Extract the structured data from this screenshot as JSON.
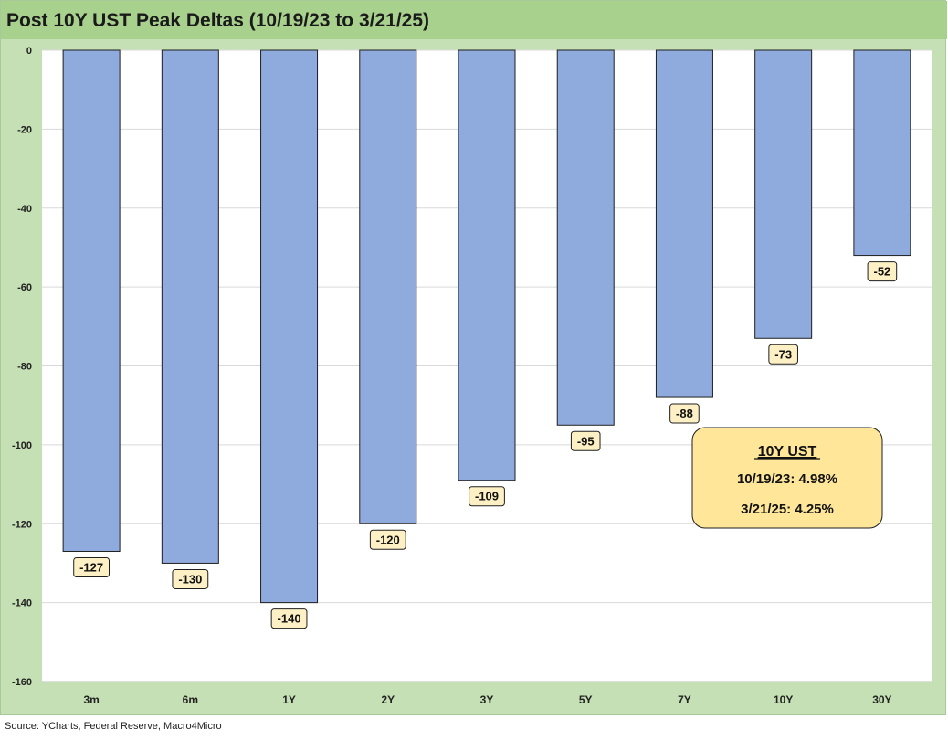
{
  "title": "Post 10Y UST Peak Deltas (10/19/23 to 3/21/25)",
  "source": "Source: YCharts, Federal Reserve, Macro4Micro",
  "colors": {
    "bar_fill": "#8faadc",
    "bar_stroke": "#1f1f1f",
    "background": "#c5e0b4",
    "title_band": "#a9d18e",
    "plot_area": "#ffffff",
    "label_fill": "#fdf0c4",
    "annotation_fill": "#ffe699"
  },
  "chart_data": {
    "type": "bar",
    "categories": [
      "3m",
      "6m",
      "1Y",
      "2Y",
      "3Y",
      "5Y",
      "7Y",
      "10Y",
      "30Y"
    ],
    "values": [
      -127,
      -130,
      -140,
      -120,
      -109,
      -95,
      -88,
      -73,
      -52
    ],
    "data_labels": [
      "-127",
      "-130",
      "-140",
      "-120",
      "-109",
      "-95",
      "-88",
      "-73",
      "-52"
    ],
    "ylim": [
      -160,
      0
    ],
    "yticks": [
      0,
      -20,
      -40,
      -60,
      -80,
      -100,
      -120,
      -140,
      -160
    ],
    "ytick_labels": [
      "0",
      "-20",
      "-40",
      "-60",
      "-80",
      "-100",
      "-120",
      "-140",
      "-160"
    ],
    "xlabel": "",
    "ylabel": "",
    "grid": true,
    "legend": false
  },
  "annotation": {
    "heading": "10Y UST",
    "line1": "10/19/23: 4.98%",
    "line2": "3/21/25: 4.25%"
  }
}
